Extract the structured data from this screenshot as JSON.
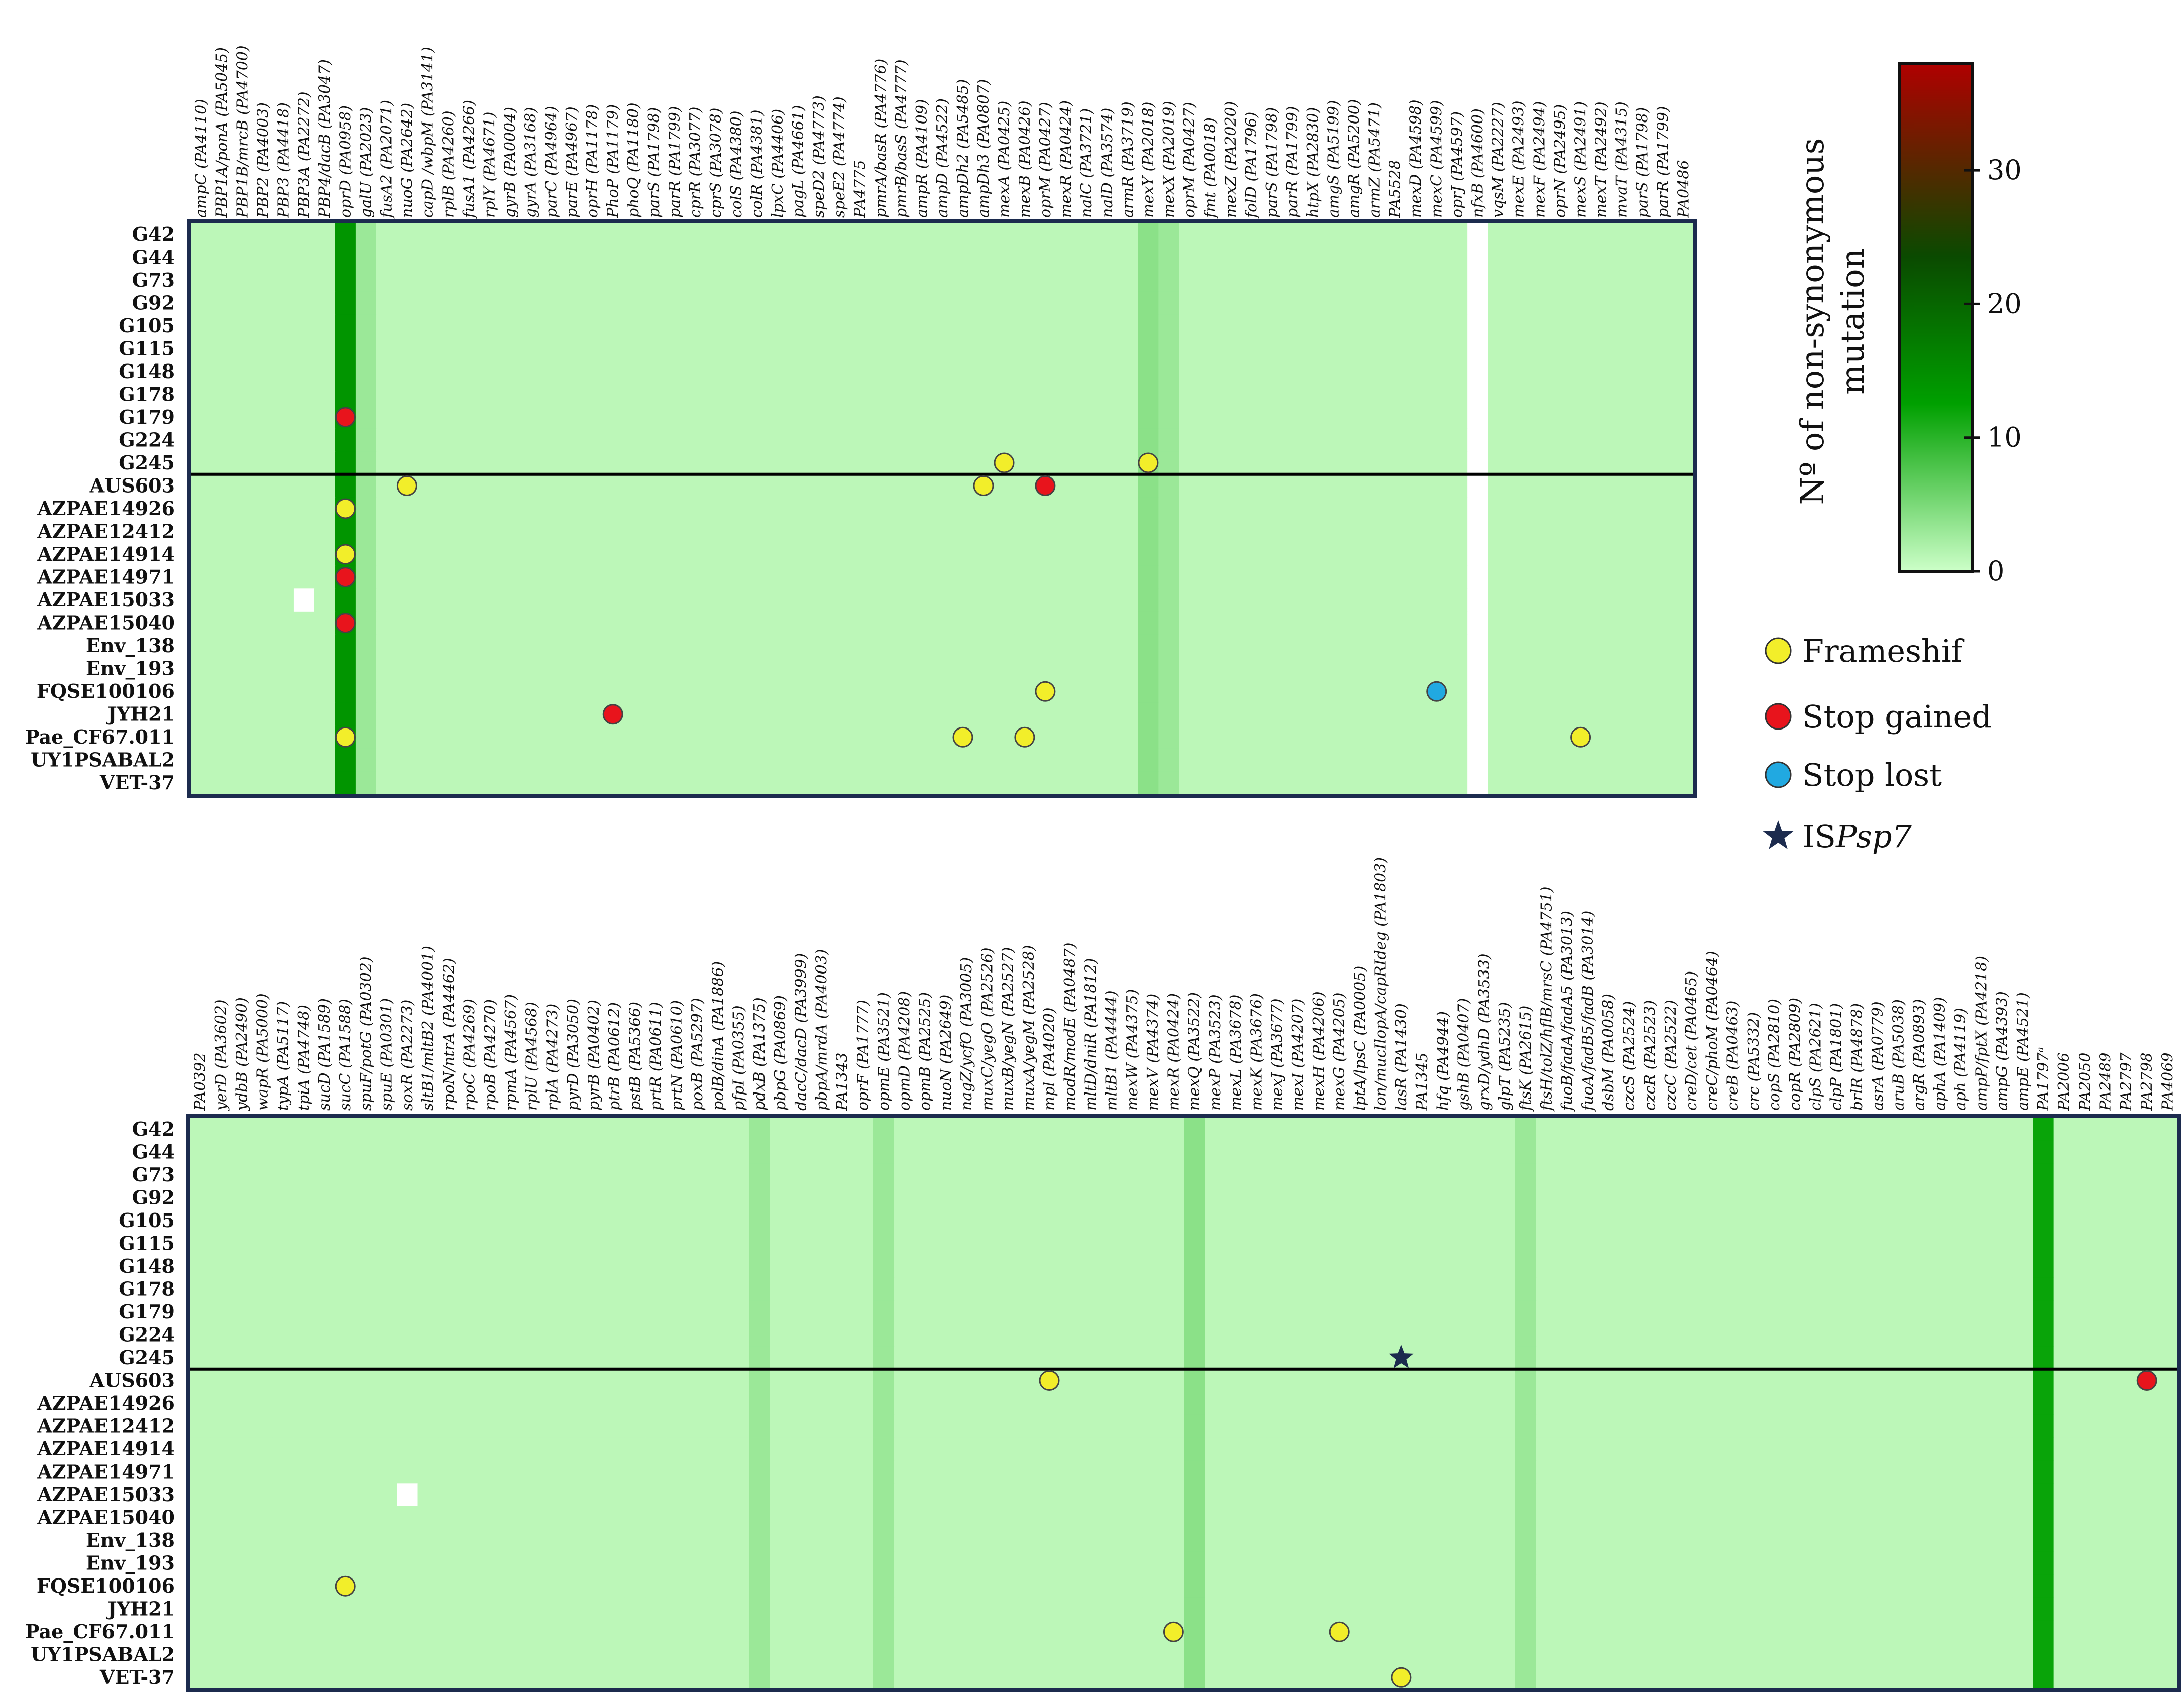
{
  "chart_data": [
    {
      "type": "heatmap",
      "panel": "top",
      "rows": [
        "G42",
        "G44",
        "G73",
        "G92",
        "G105",
        "G115",
        "G148",
        "G178",
        "G179",
        "G224",
        "G245",
        "AUS603",
        "AZPAE14926",
        "AZPAE12412",
        "AZPAE14914",
        "AZPAE14971",
        "AZPAE15033",
        "AZPAE15040",
        "Env_138",
        "Env_193",
        "FQSE100106",
        "JYH21",
        "Pae_CF67.011",
        "UY1PSABAL2",
        "VET-37"
      ],
      "genes": [
        "ampC (PA4110)",
        "PBP1A/ponA (PA5045)",
        "PBP1B/mrcB (PA4700)",
        "PBP2 (PA4003)",
        "PBP3 (PA4418)",
        "PBP3A (PA2272)",
        "PBP4/dacB (PA3047)",
        "oprD (PA0958)",
        "galU (PA2023)",
        "fusA2 (PA2071)",
        "nuoG (PA2642)",
        "capD /wbpM (PA3141)",
        "rplB (PA4260)",
        "fusA1 (PA4266)",
        "rplY (PA4671)",
        "gyrB (PA0004)",
        "gyrA (PA3168)",
        "parC (PA4964)",
        "parE (PA4967)",
        "oprH (PA1178)",
        "PhoP (PA1179)",
        "phoQ (PA1180)",
        "parS (PA1798)",
        "parR (PA1799)",
        "cprR (PA3077)",
        "cprS (PA3078)",
        "colS (PA4380)",
        "colR (PA4381)",
        "lpxC (PA4406)",
        "pagL (PA4661)",
        "speD2 (PA4773)",
        "speE2 (PA4774)",
        "PA4775",
        "pmrA/basR (PA4776)",
        "pmrB/basS (PA4777)",
        "ampR (PA4109)",
        "ampD (PA4522)",
        "ampDh2 (PA5485)",
        "ampDh3 (PA0807)",
        "mexA (PA0425)",
        "mexB (PA0426)",
        "oprM (PA0427)",
        "mexR (PA0424)",
        "nalC (PA3721)",
        "nalD (PA3574)",
        "armR (PA3719)",
        "mexY (PA2018)",
        "mexX (PA2019)",
        "oprM (PA0427)",
        "fmt (PA0018)",
        "mexZ (PA2020)",
        "folD (PA1796)",
        "parS (PA1798)",
        "parR (PA1799)",
        "htpX (PA2830)",
        "amgS (PA5199)",
        "amgR (PA5200)",
        "armZ (PA5471)",
        "PA5528",
        "mexD (PA4598)",
        "mexC (PA4599)",
        "oprJ (PA4597)",
        "nfxB (PA4600)",
        "vqsM (PA2227)",
        "mexE (PA2493)",
        "mexF (PA2494)",
        "oprN (PA2495)",
        "mexS (PA2491)",
        "mexT (PA2492)",
        "mvaT (PA4315)",
        "parS (PA1798)",
        "parR (PA1799)",
        "PA0486"
      ],
      "values": {
        "default": 1,
        "oprD (PA0958)": 14,
        "galU (PA2023)": 3,
        "mexY (PA2018)": 4,
        "mexX (PA2019)": 3
      },
      "blank_cells": [
        [
          "AZPAE15033",
          "PBP3A (PA2272)"
        ]
      ],
      "blank_columns": [
        "nfxB (PA4600)"
      ],
      "markers": [
        {
          "row": "G179",
          "gene": "oprD (PA0958)",
          "type": "Stop gained"
        },
        {
          "row": "G245",
          "gene": "mexA (PA0425)",
          "type": "Frameshif"
        },
        {
          "row": "G245",
          "gene": "mexY (PA2018)",
          "type": "Frameshif"
        },
        {
          "row": "AUS603",
          "gene": "nuoG (PA2642)",
          "type": "Frameshif"
        },
        {
          "row": "AUS603",
          "gene": "ampDh3 (PA0807)",
          "type": "Frameshif"
        },
        {
          "row": "AUS603",
          "gene": "oprM (PA0427)",
          "type": "Stop gained"
        },
        {
          "row": "AZPAE14926",
          "gene": "oprD (PA0958)",
          "type": "Frameshif"
        },
        {
          "row": "AZPAE14914",
          "gene": "oprD (PA0958)",
          "type": "Frameshif"
        },
        {
          "row": "AZPAE14971",
          "gene": "oprD (PA0958)",
          "type": "Stop gained"
        },
        {
          "row": "AZPAE15040",
          "gene": "oprD (PA0958)",
          "type": "Stop gained"
        },
        {
          "row": "FQSE100106",
          "gene": "oprM (PA0427)",
          "type": "Frameshif"
        },
        {
          "row": "FQSE100106",
          "gene": "mexC (PA4599)",
          "type": "Stop lost"
        },
        {
          "row": "JYH21",
          "gene": "PhoP (PA1179)",
          "type": "Stop gained"
        },
        {
          "row": "Pae_CF67.011",
          "gene": "oprD (PA0958)",
          "type": "Frameshif"
        },
        {
          "row": "Pae_CF67.011",
          "gene": "ampDh2 (PA5485)",
          "type": "Frameshif"
        },
        {
          "row": "Pae_CF67.011",
          "gene": "mexB (PA0426)",
          "type": "Frameshif"
        },
        {
          "row": "Pae_CF67.011",
          "gene": "mexS (PA2491)",
          "type": "Frameshif"
        }
      ],
      "group_divider_after": "G245"
    },
    {
      "type": "heatmap",
      "panel": "bottom",
      "rows": [
        "G42",
        "G44",
        "G73",
        "G92",
        "G105",
        "G115",
        "G148",
        "G178",
        "G179",
        "G224",
        "G245",
        "AUS603",
        "AZPAE14926",
        "AZPAE12412",
        "AZPAE14914",
        "AZPAE14971",
        "AZPAE15033",
        "AZPAE15040",
        "Env_138",
        "Env_193",
        "FQSE100106",
        "JYH21",
        "Pae_CF67.011",
        "UY1PSABAL2",
        "VET-37"
      ],
      "genes": [
        "PA0392",
        "yerD (PA3602)",
        "ydbB (PA2490)",
        "wapR (PA5000)",
        "typA (PA5117)",
        "tpiA (PA4748)",
        "sucD (PA1589)",
        "sucC (PA1588)",
        "spuF/potG (PA0302)",
        "spuE (PA0301)",
        "soxR (PA2273)",
        "sltB1/mltB2 (PA4001)",
        "rpoN/ntrA (PA4462)",
        "rpoC (PA4269)",
        "rpoB (PA4270)",
        "rpmA (PA4567)",
        "rplU (PA4568)",
        "rplA (PA4273)",
        "pyrD (PA3050)",
        "pyrB (PA0402)",
        "ptrB (PA0612)",
        "pstB (PA5366)",
        "prtR (PA0611)",
        "prtN (PA0610)",
        "poxB (PA5297)",
        "polB/dinA (PA1886)",
        "pfpI (PA0355)",
        "pdxB (PA1375)",
        "pbpG (PA0869)",
        "dacC/dacD (PA3999)",
        "pbpA/mrdA (PA4003)",
        "PA1343",
        "oprF (PA1777)",
        "opmE (PA3521)",
        "opmD (PA4208)",
        "opmB (PA2525)",
        "nuoN (PA2649)",
        "nagZ/ycfO (PA3005)",
        "muxC/yegO (PA2526)",
        "muxB/yegN (PA2527)",
        "muxA/yegM (PA2528)",
        "mpl (PA4020)",
        "modR/modE (PA0487)",
        "mltD/dniR (PA1812)",
        "mltB1 (PA4444)",
        "mexW (PA4375)",
        "mexV (PA4374)",
        "mexR (PA0424)",
        "mexQ (PA3522)",
        "mexP (PA3523)",
        "mexL (PA3678)",
        "mexK (PA3676)",
        "mexJ (PA3677)",
        "mexI (PA4207)",
        "mexH (PA4206)",
        "mexG (PA4205)",
        "lptA/lpsC (PA0005)",
        "lon/mucIlopA/capRIdeg (PA1803)",
        "lasR (PA1430)",
        "PA1345",
        "hfq (PA4944)",
        "gshB (PA0407)",
        "grxD/ydhD (PA3533)",
        "glpT (PA5235)",
        "ftsK (PA2615)",
        "ftsH/tolZ/hflB/mrsC (PA4751)",
        "fuoB/fadA/fadA5 (PA3013)",
        "fuoA/fadB5/fadB (PA3014)",
        "dsbM (PA0058)",
        "czcS (PA2524)",
        "czcR (PA2523)",
        "czcC (PA2522)",
        "creD/cet (PA0465)",
        "creC/phoM (PA0464)",
        "creB (PA0463)",
        "crc (PA5332)",
        "copS (PA2810)",
        "copR (PA2809)",
        "clpS (PA2621)",
        "clpP (PA1801)",
        "brlR (PA4878)",
        "asrA (PA0779)",
        "aruB (PA5038)",
        "argR (PA0893)",
        "aphA (PA1409)",
        "aph (PA4119)",
        "ampP/fptX (PA4218)",
        "ampG (PA4393)",
        "ampE (PA4521)",
        "PA1797ᵃ",
        "PA2006",
        "PA2050",
        "PA2489",
        "PA2797",
        "PA2798",
        "PA4069"
      ],
      "values": {
        "default": 1,
        "PA1797ᵃ": 12,
        "mexQ (PA3522)": 4,
        "pdxB (PA1375)": 3,
        "opmE (PA3521)": 3,
        "ftsK (PA2615)": 3
      },
      "blank_cells": [
        [
          "AZPAE15033",
          "soxR (PA2273)"
        ]
      ],
      "blank_columns": [],
      "markers": [
        {
          "row": "G245",
          "gene": "lasR (PA1430)",
          "type": "ISPsp7"
        },
        {
          "row": "AUS603",
          "gene": "mpl (PA4020)",
          "type": "Frameshif"
        },
        {
          "row": "AUS603",
          "gene": "PA2798",
          "type": "Stop gained"
        },
        {
          "row": "FQSE100106",
          "gene": "sucC (PA1588)",
          "type": "Frameshif"
        },
        {
          "row": "Pae_CF67.011",
          "gene": "mexR (PA0424)",
          "type": "Frameshif"
        },
        {
          "row": "Pae_CF67.011",
          "gene": "mexG (PA4205)",
          "type": "Frameshif"
        },
        {
          "row": "VET-37",
          "gene": "lasR (PA1430)",
          "type": "Frameshif"
        }
      ],
      "group_divider_after": "G245"
    }
  ],
  "colorbar": {
    "title_line1": "Nº of non-synonymous",
    "title_line2": "mutation",
    "ticks": [
      "0",
      "10",
      "20",
      "30"
    ],
    "range": [
      0,
      38
    ],
    "stops": [
      "#ccffc8",
      "#00a000",
      "#0a4a00",
      "#b00000"
    ]
  },
  "legend": {
    "items": [
      {
        "label": "Frameshif",
        "type": "Frameshif",
        "color": "#f2ee2a"
      },
      {
        "label": "Stop gained",
        "type": "Stop gained",
        "color": "#e8141c"
      },
      {
        "label": "Stop lost",
        "type": "Stop lost",
        "color": "#21a9e1"
      },
      {
        "label_prefix": "IS",
        "label_italic": "Psp7",
        "type": "ISPsp7",
        "color": "#1c2b4e"
      }
    ]
  },
  "colors": {
    "frame": "#1c2b4e",
    "divider": "#000000"
  }
}
